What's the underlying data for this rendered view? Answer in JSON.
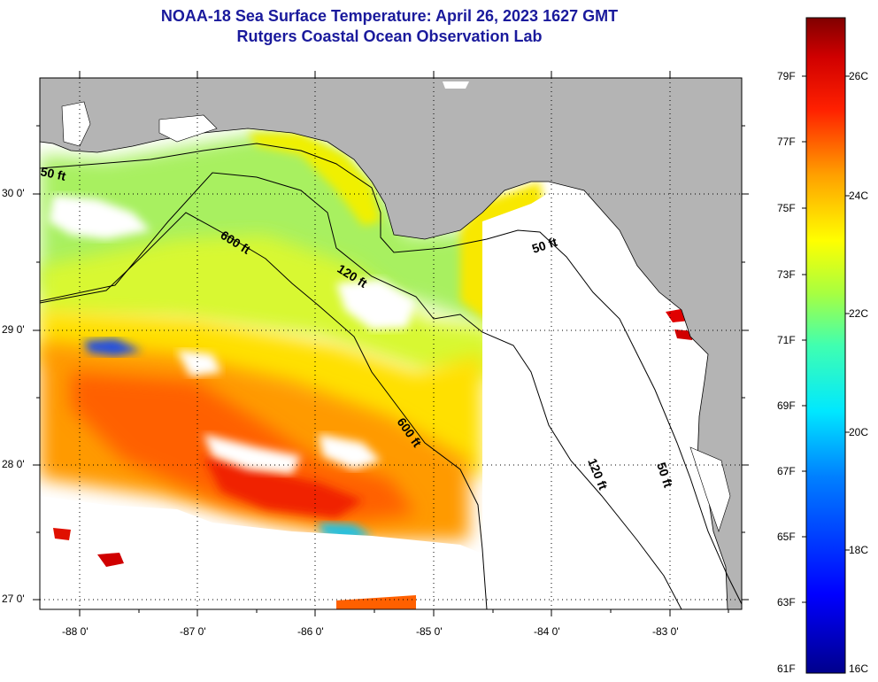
{
  "header": {
    "title": "NOAA-18 Sea Surface Temperature:  April 26, 2023 1627 GMT",
    "subtitle": "Rutgers Coastal Ocean Observation Lab"
  },
  "map": {
    "lat_labels": [
      "30 0'",
      "29 0'",
      "28 0'",
      "27 0'"
    ],
    "lon_labels": [
      "-88 0'",
      "-87 0'",
      "-86 0'",
      "-85 0'",
      "-84 0'",
      "-83 0'"
    ],
    "contour_labels": {
      "c50_west": "50 ft",
      "c600_a": "600 ft",
      "c120_a": "120 ft",
      "c50_b": "50 ft",
      "c600_b": "600 ft",
      "c120_b": "120 ft",
      "c50_c": "50 ft"
    },
    "colors": {
      "land": "#b4b4b4",
      "cloud": "#ffffff",
      "contour": "#000000"
    }
  },
  "colorbar": {
    "fahrenheit_labels": [
      "79F",
      "77F",
      "75F",
      "73F",
      "71F",
      "69F",
      "67F",
      "65F",
      "63F",
      "61F"
    ],
    "celsius_labels": [
      "26C",
      "24C",
      "22C",
      "20C",
      "18C",
      "16C"
    ],
    "range_f": [
      61,
      81
    ],
    "range_c": [
      16,
      27
    ]
  }
}
